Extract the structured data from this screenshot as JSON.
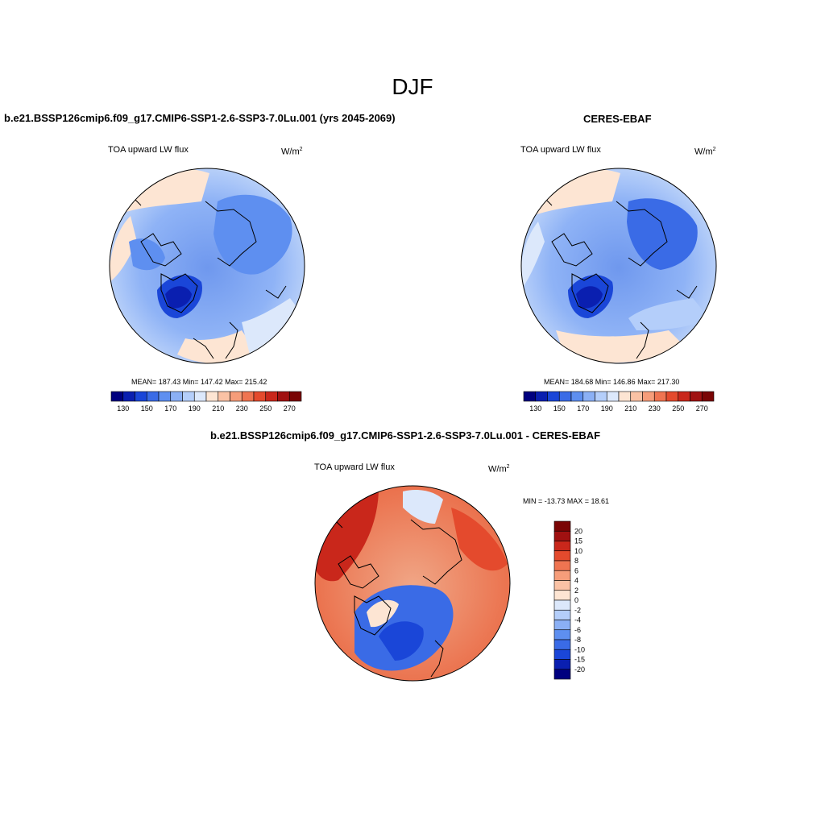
{
  "figure": {
    "title": "DJF",
    "panels": [
      {
        "title": "b.e21.BSSP126cmip6.f09_g17.CMIP6-SSP1-2.6-SSP3-7.0Lu.001 (yrs 2045-2069)",
        "variable": "TOA upward LW flux",
        "units_base": "W/m",
        "units_exp": "2",
        "stats": "MEAN= 187.43  Min= 147.42  Max= 215.42",
        "colorbar_ticks": [
          "130",
          "150",
          "170",
          "190",
          "210",
          "230",
          "250",
          "270"
        ]
      },
      {
        "title": "CERES-EBAF",
        "variable": "TOA upward LW flux",
        "units_base": "W/m",
        "units_exp": "2",
        "stats": "MEAN= 184.68  Min= 146.86  Max= 217.30",
        "colorbar_ticks": [
          "130",
          "150",
          "170",
          "190",
          "210",
          "230",
          "250",
          "270"
        ]
      },
      {
        "title": "b.e21.BSSP126cmip6.f09_g17.CMIP6-SSP1-2.6-SSP3-7.0Lu.001 - CERES-EBAF",
        "variable": "TOA upward LW flux",
        "units_base": "W/m",
        "units_exp": "2",
        "stats": "MIN = -13.73 MAX =  18.61",
        "colorbar_ticks": [
          "20",
          "15",
          "10",
          "8",
          "6",
          "4",
          "2",
          "0",
          "-2",
          "-4",
          "-6",
          "-8",
          "-10",
          "-15",
          "-20"
        ]
      }
    ],
    "colors": {
      "abs_scale": [
        "#00007f",
        "#0a1fb0",
        "#1a46d8",
        "#3a6be6",
        "#5e8ff0",
        "#8bb0f5",
        "#b4cefa",
        "#dce8fb",
        "#fde5d3",
        "#fac2a5",
        "#f69d7a",
        "#ef7451",
        "#e44a2d",
        "#c9271b",
        "#a01111",
        "#7a0505"
      ],
      "diff_scale": [
        "#7a0505",
        "#a01111",
        "#c9271b",
        "#e44a2d",
        "#ef7451",
        "#f69d7a",
        "#fac2a5",
        "#fde5d3",
        "#dce8fb",
        "#b4cefa",
        "#8bb0f5",
        "#5e8ff0",
        "#3a6be6",
        "#1a46d8",
        "#0a1fb0",
        "#00007f"
      ]
    }
  }
}
